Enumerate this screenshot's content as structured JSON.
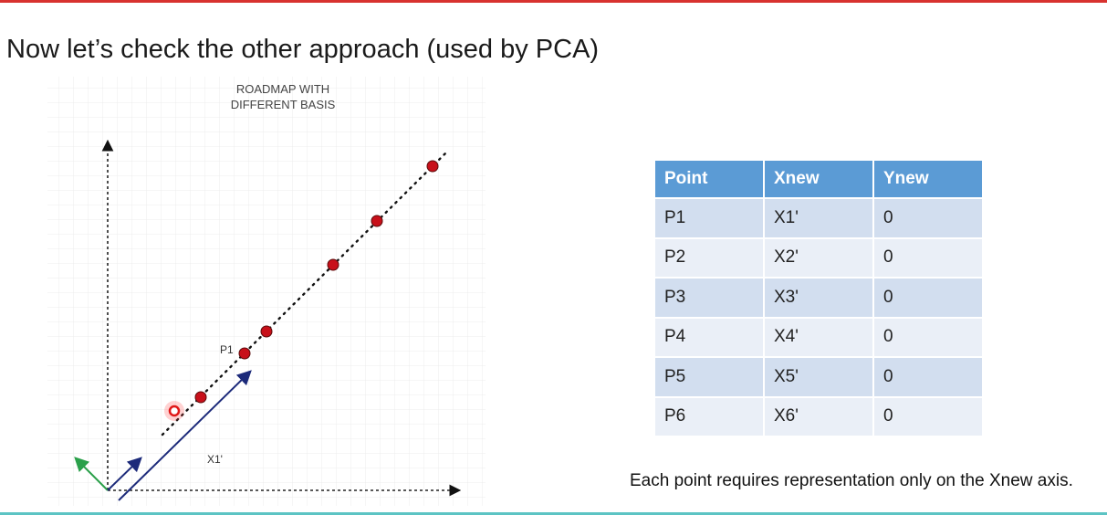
{
  "slide": {
    "title": "Now let’s check the other approach (used by PCA)",
    "accent_top": "#d8322f",
    "accent_bottom": "#5cc4c4"
  },
  "diagram": {
    "caption": "ROADMAP WITH\nDIFFERENT  BASIS",
    "point_label": "P1",
    "vector_label": "X1'",
    "point_color": "#c8101a",
    "vector_color": "#1c2a7a",
    "secondary_vector_color": "#2aa04a"
  },
  "table": {
    "headers": [
      "Point",
      "Xnew",
      "Ynew"
    ],
    "rows": [
      [
        "P1",
        "X1'",
        "0"
      ],
      [
        "P2",
        "X2'",
        "0"
      ],
      [
        "P3",
        "X3'",
        "0"
      ],
      [
        "P4",
        "X4'",
        "0"
      ],
      [
        "P5",
        "X5'",
        "0"
      ],
      [
        "P6",
        "X6'",
        "0"
      ]
    ],
    "header_color": "#5b9bd5"
  },
  "note": "Each point requires representation only on the Xnew axis."
}
